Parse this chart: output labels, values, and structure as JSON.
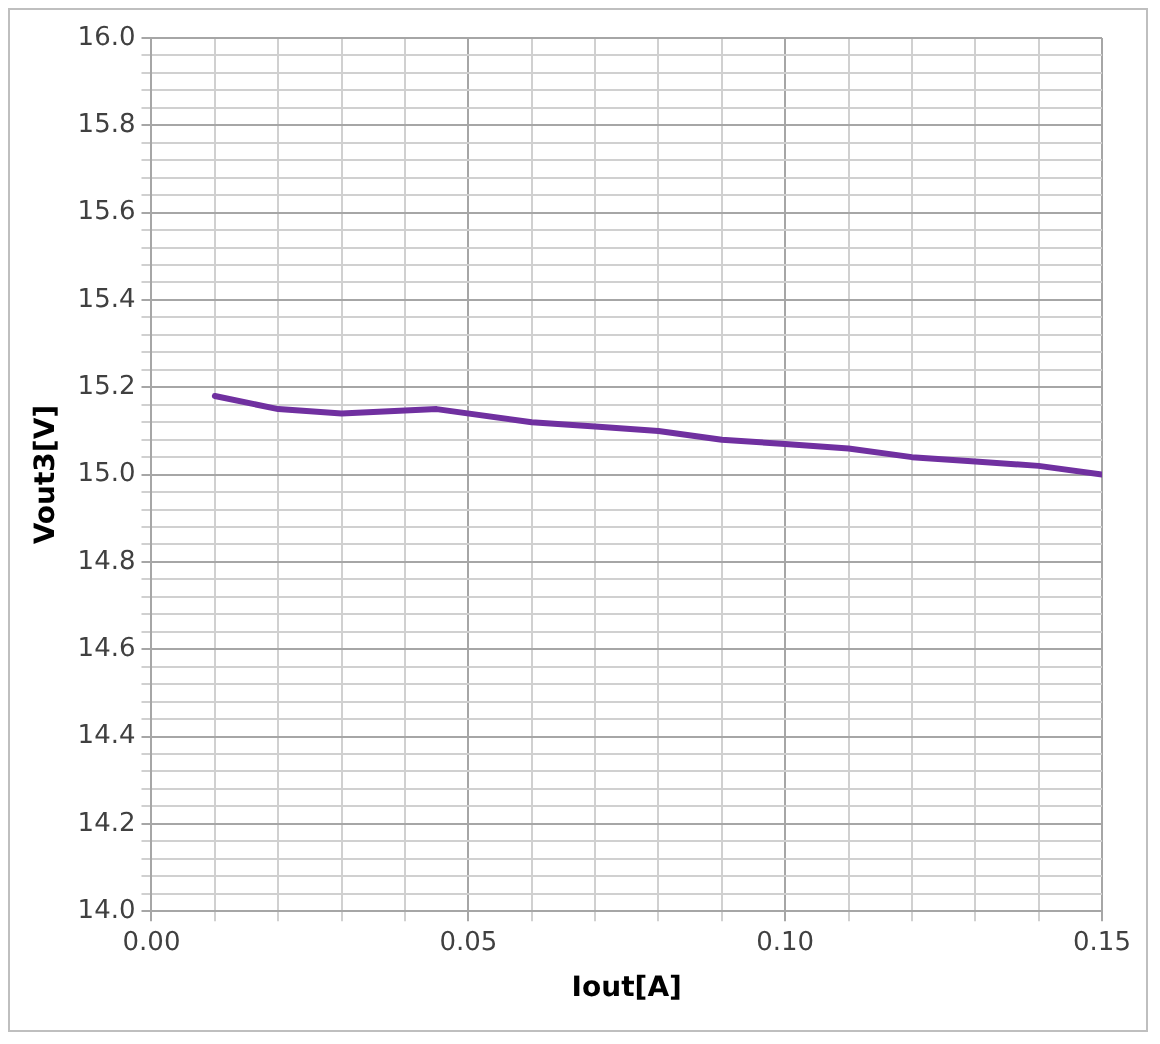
{
  "chart_data": {
    "type": "line",
    "xlabel": "Iout[A]",
    "ylabel": "Vout3[V]",
    "series": [
      {
        "color": "#7030a0",
        "x": [
          0.01,
          0.02,
          0.03,
          0.045,
          0.06,
          0.07,
          0.08,
          0.09,
          0.1,
          0.11,
          0.12,
          0.13,
          0.14,
          0.15
        ],
        "values": [
          15.18,
          15.15,
          15.14,
          15.15,
          15.12,
          15.11,
          15.1,
          15.08,
          15.07,
          15.06,
          15.04,
          15.03,
          15.02,
          15.0
        ]
      }
    ],
    "xlim": [
      0,
      0.15
    ],
    "xticks": [
      {
        "value": 0,
        "label": "0.00"
      },
      {
        "value": 0.01,
        "label": null
      },
      {
        "value": 0.02,
        "label": null
      },
      {
        "value": 0.03,
        "label": null
      },
      {
        "value": 0.04,
        "label": null
      },
      {
        "value": 0.05,
        "label": "0.05"
      },
      {
        "value": 0.06,
        "label": null
      },
      {
        "value": 0.07,
        "label": null
      },
      {
        "value": 0.08,
        "label": null
      },
      {
        "value": 0.09,
        "label": null
      },
      {
        "value": 0.1,
        "label": "0.10"
      },
      {
        "value": 0.11,
        "label": null
      },
      {
        "value": 0.12,
        "label": null
      },
      {
        "value": 0.13,
        "label": null
      },
      {
        "value": 0.14,
        "label": null
      },
      {
        "value": 0.15,
        "label": "0.15"
      }
    ],
    "ylim": [
      14,
      16
    ],
    "yticks": [
      {
        "value": 14,
        "label": "14.0"
      },
      {
        "value": 14.04,
        "label": null
      },
      {
        "value": 14.08,
        "label": null
      },
      {
        "value": 14.12,
        "label": null
      },
      {
        "value": 14.16,
        "label": null
      },
      {
        "value": 14.2,
        "label": "14.2"
      },
      {
        "value": 14.24,
        "label": null
      },
      {
        "value": 14.28,
        "label": null
      },
      {
        "value": 14.32,
        "label": null
      },
      {
        "value": 14.36,
        "label": null
      },
      {
        "value": 14.4,
        "label": "14.4"
      },
      {
        "value": 14.44,
        "label": null
      },
      {
        "value": 14.48,
        "label": null
      },
      {
        "value": 14.52,
        "label": null
      },
      {
        "value": 14.56,
        "label": null
      },
      {
        "value": 14.6,
        "label": "14.6"
      },
      {
        "value": 14.64,
        "label": null
      },
      {
        "value": 14.68,
        "label": null
      },
      {
        "value": 14.72,
        "label": null
      },
      {
        "value": 14.76,
        "label": null
      },
      {
        "value": 14.8,
        "label": "14.8"
      },
      {
        "value": 14.84,
        "label": null
      },
      {
        "value": 14.88,
        "label": null
      },
      {
        "value": 14.92,
        "label": null
      },
      {
        "value": 14.96,
        "label": null
      },
      {
        "value": 15,
        "label": "15.0"
      },
      {
        "value": 15.04,
        "label": null
      },
      {
        "value": 15.08,
        "label": null
      },
      {
        "value": 15.12,
        "label": null
      },
      {
        "value": 15.16,
        "label": null
      },
      {
        "value": 15.2,
        "label": "15.2"
      },
      {
        "value": 15.24,
        "label": null
      },
      {
        "value": 15.28,
        "label": null
      },
      {
        "value": 15.32,
        "label": null
      },
      {
        "value": 15.36,
        "label": null
      },
      {
        "value": 15.4,
        "label": "15.4"
      },
      {
        "value": 15.44,
        "label": null
      },
      {
        "value": 15.48,
        "label": null
      },
      {
        "value": 15.52,
        "label": null
      },
      {
        "value": 15.56,
        "label": null
      },
      {
        "value": 15.6,
        "label": "15.6"
      },
      {
        "value": 15.64,
        "label": null
      },
      {
        "value": 15.68,
        "label": null
      },
      {
        "value": 15.72,
        "label": null
      },
      {
        "value": 15.76,
        "label": null
      },
      {
        "value": 15.8,
        "label": "15.8"
      },
      {
        "value": 15.84,
        "label": null
      },
      {
        "value": 15.88,
        "label": null
      },
      {
        "value": 15.92,
        "label": null
      },
      {
        "value": 15.96,
        "label": null
      },
      {
        "value": 16,
        "label": "16.0"
      }
    ],
    "grid": true,
    "legend": false,
    "marker": "none",
    "line_style": "solid"
  }
}
